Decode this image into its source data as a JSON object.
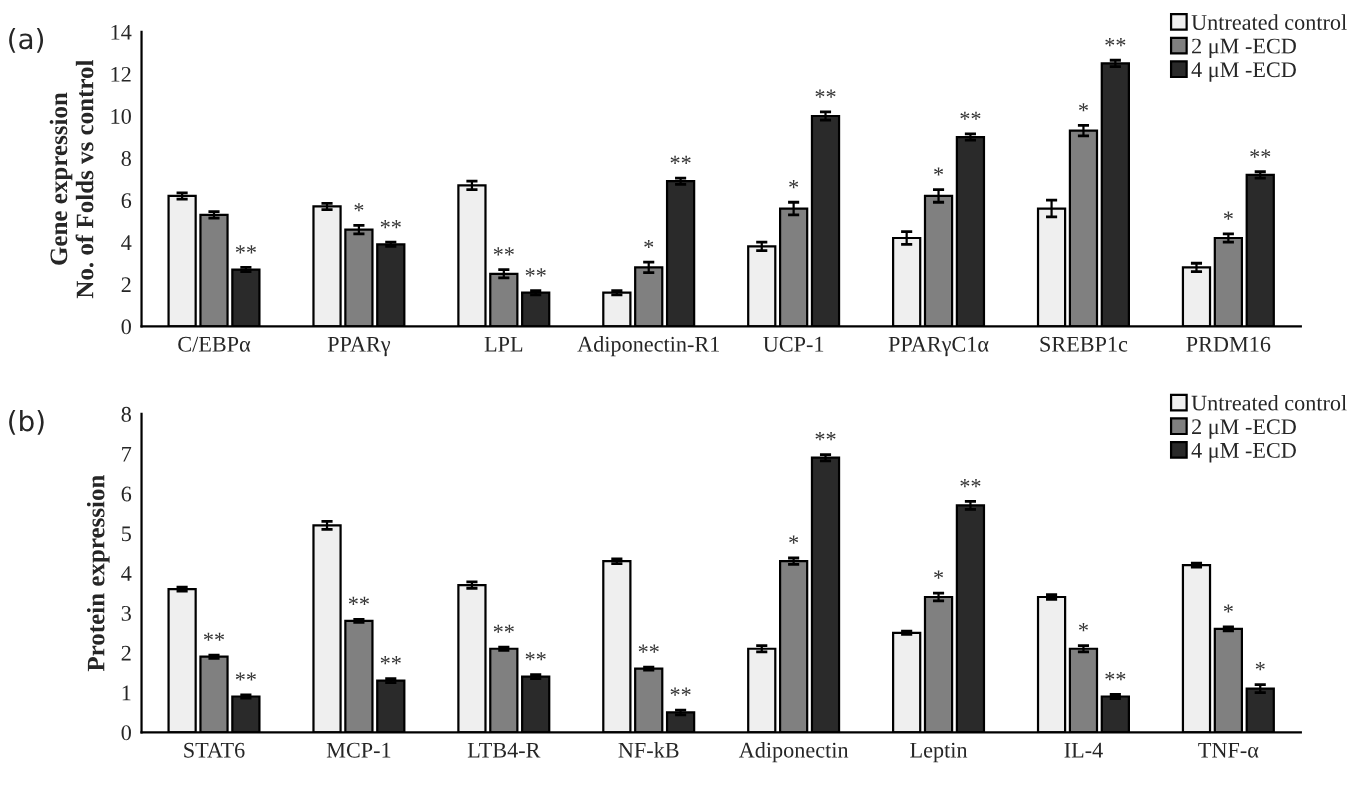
{
  "chart_data": [
    {
      "type": "bar",
      "title": "(a)",
      "ylabel": "Gene expression\nNo. of Folds vs control",
      "categories": [
        "C/EBPα",
        "PPARγ",
        "LPL",
        "Adiponectin-R1",
        "UCP-1",
        "PPARγC1α",
        "SREBP1c",
        "PRDM16"
      ],
      "ylim": [
        0,
        14
      ],
      "yticks": [
        0,
        2,
        4,
        6,
        8,
        10,
        12,
        14
      ],
      "grid": false,
      "legend": "top right",
      "series": [
        {
          "name": "Untreated control",
          "color": "#efefef",
          "values": [
            6.2,
            5.7,
            6.7,
            1.6,
            3.8,
            4.2,
            5.6,
            2.8
          ],
          "errors": [
            0.15,
            0.15,
            0.2,
            0.1,
            0.2,
            0.3,
            0.4,
            0.2
          ]
        },
        {
          "name": "2 μM -ECD",
          "color": "#808080",
          "values": [
            5.3,
            4.6,
            2.5,
            2.8,
            5.6,
            6.2,
            9.3,
            4.2
          ],
          "errors": [
            0.15,
            0.2,
            0.2,
            0.25,
            0.3,
            0.3,
            0.25,
            0.2
          ],
          "value_labels": [
            null,
            "*",
            "**",
            "*",
            "*",
            "*",
            "*",
            "*"
          ]
        },
        {
          "name": "4 μM -ECD",
          "color": "#2a2a2a",
          "values": [
            2.7,
            3.9,
            1.6,
            6.9,
            10.0,
            9.0,
            12.5,
            7.2
          ],
          "errors": [
            0.1,
            0.1,
            0.1,
            0.15,
            0.2,
            0.15,
            0.15,
            0.15
          ],
          "value_labels": [
            "**",
            "**",
            "**",
            "**",
            "**",
            "**",
            "**",
            "**"
          ]
        }
      ]
    },
    {
      "type": "bar",
      "title": "(b)",
      "ylabel": "Protein expression",
      "categories": [
        "STAT6",
        "MCP-1",
        "LTB4-R",
        "NF-kB",
        "Adiponectin",
        "Leptin",
        "IL-4",
        "TNF-α"
      ],
      "ylim": [
        0,
        8
      ],
      "yticks": [
        0,
        1,
        2,
        3,
        4,
        5,
        6,
        7,
        8
      ],
      "grid": false,
      "legend": "top right",
      "series": [
        {
          "name": "Untreated control",
          "color": "#efefef",
          "values": [
            3.6,
            5.2,
            3.7,
            4.3,
            2.1,
            2.5,
            3.4,
            4.2
          ],
          "errors": [
            0.05,
            0.1,
            0.08,
            0.06,
            0.08,
            0.04,
            0.06,
            0.05
          ]
        },
        {
          "name": "2 μM -ECD",
          "color": "#808080",
          "values": [
            1.9,
            2.8,
            2.1,
            1.6,
            4.3,
            3.4,
            2.1,
            2.6
          ],
          "errors": [
            0.04,
            0.04,
            0.04,
            0.04,
            0.08,
            0.1,
            0.08,
            0.05
          ],
          "value_labels": [
            "**",
            "**",
            "**",
            "**",
            "*",
            "*",
            "*",
            "*"
          ]
        },
        {
          "name": "4 μM -ECD",
          "color": "#2a2a2a",
          "values": [
            0.9,
            1.3,
            1.4,
            0.5,
            6.9,
            5.7,
            0.9,
            1.1
          ],
          "errors": [
            0.04,
            0.05,
            0.05,
            0.06,
            0.08,
            0.1,
            0.05,
            0.1
          ],
          "value_labels": [
            "**",
            "**",
            "**",
            "**",
            "**",
            "**",
            "**",
            "*"
          ]
        }
      ]
    }
  ]
}
